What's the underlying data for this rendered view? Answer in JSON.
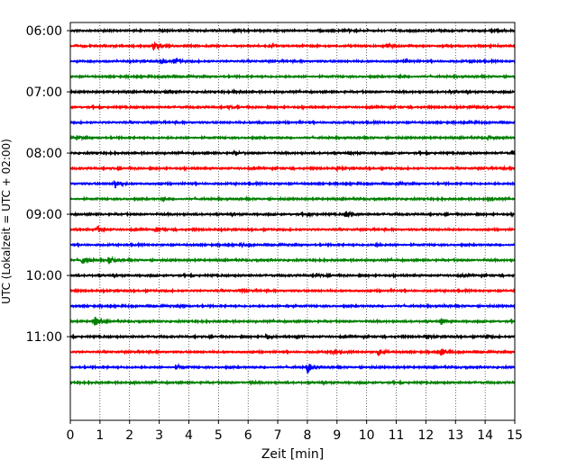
{
  "chart_data": {
    "type": "line",
    "title": "",
    "xlabel": "Zeit  [min]",
    "ylabel": "UTC (Lokalzeit = UTC + 02:00)",
    "xlim": [
      0,
      15
    ],
    "x_ticks": [
      0,
      1,
      2,
      3,
      4,
      5,
      6,
      7,
      8,
      9,
      10,
      11,
      12,
      13,
      14,
      15
    ],
    "x_tick_labels": [
      "0",
      "1",
      "2",
      "3",
      "4",
      "5",
      "6",
      "7",
      "8",
      "9",
      "10",
      "11",
      "12",
      "13",
      "14",
      "15"
    ],
    "y_ticks": [
      "06:00",
      "07:00",
      "08:00",
      "09:00",
      "10:00",
      "11:00"
    ],
    "ylim": [
      "05:52",
      "12:22"
    ],
    "grid": "vertical dotted at each minute",
    "trace_interval_minutes": 15,
    "first_trace": "06:00",
    "last_trace": "11:45",
    "trace_color_cycle": [
      "#000000",
      "#ff0000",
      "#0000ff",
      "#008000"
    ],
    "traces": [
      {
        "start": "06:00",
        "events": [
          [
            3.0,
            0.15
          ],
          [
            5.5,
            0.2
          ],
          [
            9.4,
            0.12
          ],
          [
            14.3,
            0.12
          ]
        ]
      },
      {
        "start": "06:15",
        "events": [
          [
            2.8,
            0.5
          ],
          [
            6.8,
            0.15
          ],
          [
            10.7,
            0.3
          ]
        ]
      },
      {
        "start": "06:30",
        "events": [
          [
            3.1,
            0.25
          ],
          [
            3.5,
            0.3
          ],
          [
            11.3,
            0.2
          ],
          [
            13.5,
            0.15
          ]
        ]
      },
      {
        "start": "06:45",
        "events": [
          [
            3.1,
            0.2
          ],
          [
            11.1,
            0.12
          ]
        ]
      },
      {
        "start": "07:00",
        "events": [
          [
            3.2,
            0.18
          ],
          [
            5.5,
            0.15
          ],
          [
            12.8,
            0.15
          ]
        ]
      },
      {
        "start": "07:15",
        "events": [
          [
            5.3,
            0.15
          ],
          [
            13.5,
            0.15
          ]
        ]
      },
      {
        "start": "07:30",
        "events": [
          [
            6.3,
            0.15
          ],
          [
            13.4,
            0.12
          ]
        ]
      },
      {
        "start": "07:45",
        "events": [
          [
            0.2,
            0.18
          ],
          [
            14.1,
            0.15
          ]
        ]
      },
      {
        "start": "08:00",
        "events": [
          [
            5.5,
            0.2
          ],
          [
            9.4,
            0.15
          ],
          [
            14.9,
            0.3
          ]
        ]
      },
      {
        "start": "08:15",
        "events": [
          [
            9.0,
            0.15
          ],
          [
            14.5,
            0.15
          ]
        ]
      },
      {
        "start": "08:30",
        "events": [
          [
            1.5,
            0.7
          ],
          [
            11.0,
            0.12
          ]
        ]
      },
      {
        "start": "08:45",
        "events": [
          [
            3.1,
            0.12
          ],
          [
            14.1,
            0.25
          ]
        ]
      },
      {
        "start": "09:00",
        "events": [
          [
            8.0,
            0.2
          ],
          [
            9.3,
            0.35
          ]
        ]
      },
      {
        "start": "09:15",
        "events": [
          [
            0.9,
            0.35
          ],
          [
            2.9,
            0.35
          ]
        ]
      },
      {
        "start": "09:30",
        "events": [
          [
            5.8,
            0.15
          ],
          [
            10.3,
            0.12
          ]
        ]
      },
      {
        "start": "09:45",
        "events": [
          [
            0.4,
            0.55
          ],
          [
            1.3,
            0.45
          ]
        ]
      },
      {
        "start": "10:00",
        "events": [
          [
            8.3,
            0.15
          ],
          [
            13.2,
            0.12
          ]
        ]
      },
      {
        "start": "10:15",
        "events": [
          [
            5.7,
            0.12
          ]
        ]
      },
      {
        "start": "10:30",
        "events": [
          [
            3.7,
            0.2
          ],
          [
            7.3,
            0.12
          ]
        ]
      },
      {
        "start": "10:45",
        "events": [
          [
            0.8,
            0.75
          ],
          [
            12.5,
            0.4
          ]
        ]
      },
      {
        "start": "11:00",
        "events": [
          [
            6.6,
            0.2
          ],
          [
            7.6,
            0.2
          ],
          [
            12.0,
            0.2
          ],
          [
            14.0,
            0.15
          ]
        ]
      },
      {
        "start": "11:15",
        "events": [
          [
            8.8,
            0.25
          ],
          [
            10.4,
            0.45
          ],
          [
            12.5,
            0.5
          ]
        ]
      },
      {
        "start": "11:30",
        "events": [
          [
            3.6,
            0.2
          ],
          [
            8.0,
            0.7
          ]
        ]
      },
      {
        "start": "11:45",
        "events": [
          [
            2.1,
            0.12
          ],
          [
            6.0,
            0.12
          ]
        ]
      }
    ]
  }
}
